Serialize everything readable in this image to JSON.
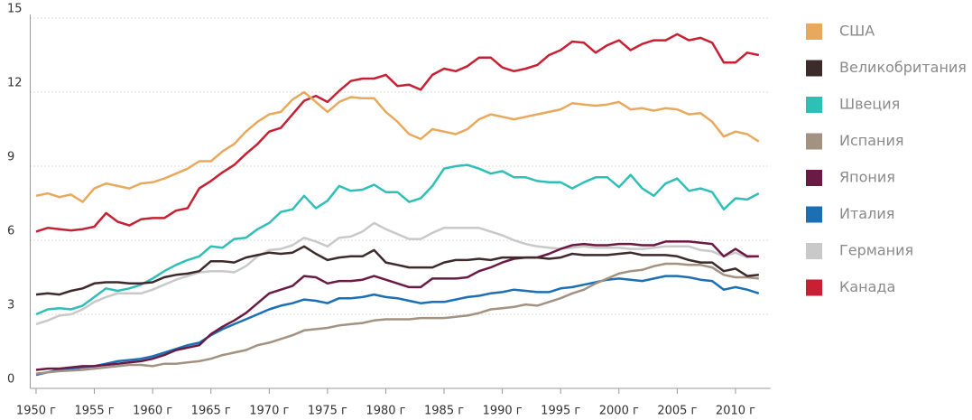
{
  "chart_data": {
    "type": "line",
    "x": [
      1950,
      1951,
      1952,
      1953,
      1954,
      1955,
      1956,
      1957,
      1958,
      1959,
      1960,
      1961,
      1962,
      1963,
      1964,
      1965,
      1966,
      1967,
      1968,
      1969,
      1970,
      1971,
      1972,
      1973,
      1974,
      1975,
      1976,
      1977,
      1978,
      1979,
      1980,
      1981,
      1982,
      1983,
      1984,
      1985,
      1986,
      1987,
      1988,
      1989,
      1990,
      1991,
      1992,
      1993,
      1994,
      1995,
      1996,
      1997,
      1998,
      1999,
      2000,
      2001,
      2002,
      2003,
      2004,
      2005,
      2006,
      2007,
      2008,
      2009,
      2010,
      2011,
      2012
    ],
    "series": [
      {
        "name": "США",
        "color": "#e8a95c",
        "values": [
          7.8,
          7.9,
          7.75,
          7.85,
          7.55,
          8.1,
          8.3,
          8.2,
          8.1,
          8.3,
          8.35,
          8.5,
          8.7,
          8.9,
          9.2,
          9.2,
          9.6,
          9.9,
          10.4,
          10.8,
          11.1,
          11.2,
          11.7,
          12.0,
          11.6,
          11.2,
          11.6,
          11.8,
          11.75,
          11.75,
          11.2,
          10.8,
          10.3,
          10.1,
          10.5,
          10.4,
          10.3,
          10.5,
          10.9,
          11.1,
          11.0,
          10.9,
          11.0,
          11.1,
          11.2,
          11.3,
          11.55,
          11.5,
          11.45,
          11.5,
          11.6,
          11.3,
          11.35,
          11.25,
          11.35,
          11.3,
          11.1,
          11.15,
          10.8,
          10.2,
          10.4,
          10.3,
          10.0
        ]
      },
      {
        "name": "Великобритания",
        "color": "#3d2b2b",
        "values": [
          3.8,
          3.85,
          3.8,
          3.95,
          4.05,
          4.25,
          4.3,
          4.3,
          4.25,
          4.25,
          4.3,
          4.5,
          4.6,
          4.65,
          4.75,
          5.15,
          5.15,
          5.1,
          5.3,
          5.4,
          5.5,
          5.45,
          5.5,
          5.75,
          5.45,
          5.2,
          5.3,
          5.35,
          5.35,
          5.6,
          5.1,
          5.0,
          4.9,
          4.9,
          4.9,
          5.1,
          5.2,
          5.2,
          5.25,
          5.2,
          5.3,
          5.3,
          5.3,
          5.3,
          5.25,
          5.3,
          5.45,
          5.4,
          5.4,
          5.4,
          5.45,
          5.5,
          5.4,
          5.4,
          5.4,
          5.35,
          5.2,
          5.1,
          5.1,
          4.75,
          4.85,
          4.55,
          4.6
        ]
      },
      {
        "name": "Швеция",
        "color": "#2ebfb7",
        "values": [
          3.0,
          3.2,
          3.25,
          3.2,
          3.35,
          3.7,
          4.05,
          3.95,
          4.05,
          4.2,
          4.45,
          4.75,
          5.0,
          5.2,
          5.35,
          5.75,
          5.7,
          6.05,
          6.1,
          6.45,
          6.7,
          7.15,
          7.25,
          7.8,
          7.3,
          7.6,
          8.2,
          8.0,
          8.05,
          8.25,
          7.95,
          7.95,
          7.55,
          7.7,
          8.2,
          8.9,
          9.0,
          9.05,
          8.9,
          8.7,
          8.8,
          8.55,
          8.55,
          8.4,
          8.35,
          8.35,
          8.1,
          8.35,
          8.55,
          8.55,
          8.15,
          8.65,
          8.1,
          7.8,
          8.3,
          8.5,
          8.0,
          8.1,
          7.95,
          7.25,
          7.7,
          7.65,
          7.9
        ]
      },
      {
        "name": "Испания",
        "color": "#a39282",
        "values": [
          0.6,
          0.65,
          0.7,
          0.72,
          0.75,
          0.8,
          0.85,
          0.9,
          0.95,
          0.95,
          0.9,
          1.0,
          1.0,
          1.05,
          1.1,
          1.2,
          1.35,
          1.45,
          1.55,
          1.75,
          1.85,
          2.0,
          2.15,
          2.35,
          2.4,
          2.45,
          2.55,
          2.6,
          2.65,
          2.75,
          2.8,
          2.8,
          2.8,
          2.85,
          2.85,
          2.85,
          2.9,
          2.95,
          3.05,
          3.2,
          3.25,
          3.3,
          3.4,
          3.35,
          3.5,
          3.65,
          3.85,
          4.0,
          4.25,
          4.45,
          4.65,
          4.75,
          4.8,
          4.95,
          5.05,
          5.05,
          5.0,
          5.0,
          4.9,
          4.6,
          4.5,
          4.5,
          4.45
        ]
      },
      {
        "name": "Япония",
        "color": "#6b1a45",
        "values": [
          0.75,
          0.8,
          0.8,
          0.85,
          0.9,
          0.9,
          0.95,
          1.0,
          1.05,
          1.1,
          1.2,
          1.35,
          1.55,
          1.65,
          1.75,
          2.2,
          2.5,
          2.75,
          3.05,
          3.45,
          3.85,
          4.0,
          4.15,
          4.55,
          4.5,
          4.25,
          4.35,
          4.35,
          4.4,
          4.55,
          4.4,
          4.25,
          4.1,
          4.1,
          4.45,
          4.45,
          4.45,
          4.5,
          4.75,
          4.9,
          5.1,
          5.25,
          5.3,
          5.3,
          5.45,
          5.65,
          5.8,
          5.85,
          5.8,
          5.8,
          5.85,
          5.85,
          5.8,
          5.8,
          5.95,
          5.95,
          5.95,
          5.9,
          5.85,
          5.35,
          5.65,
          5.35,
          5.35
        ]
      },
      {
        "name": "Италия",
        "color": "#1a6fb5",
        "values": [
          0.55,
          0.65,
          0.75,
          0.8,
          0.85,
          0.9,
          1.0,
          1.1,
          1.15,
          1.2,
          1.3,
          1.45,
          1.6,
          1.75,
          1.85,
          2.15,
          2.4,
          2.6,
          2.8,
          3.0,
          3.2,
          3.35,
          3.45,
          3.6,
          3.55,
          3.45,
          3.65,
          3.65,
          3.7,
          3.8,
          3.7,
          3.65,
          3.55,
          3.45,
          3.5,
          3.5,
          3.6,
          3.7,
          3.75,
          3.85,
          3.9,
          4.0,
          3.95,
          3.9,
          3.9,
          4.05,
          4.1,
          4.2,
          4.3,
          4.4,
          4.45,
          4.4,
          4.35,
          4.45,
          4.55,
          4.55,
          4.5,
          4.4,
          4.35,
          4.0,
          4.1,
          4.0,
          3.85
        ]
      },
      {
        "name": "Германия",
        "color": "#c9c9c9",
        "values": [
          2.6,
          2.75,
          2.95,
          3.0,
          3.2,
          3.5,
          3.7,
          3.85,
          3.85,
          3.85,
          4.0,
          4.2,
          4.4,
          4.55,
          4.7,
          4.75,
          4.75,
          4.7,
          4.95,
          5.35,
          5.6,
          5.65,
          5.8,
          6.1,
          5.95,
          5.75,
          6.1,
          6.15,
          6.35,
          6.7,
          6.45,
          6.25,
          6.05,
          6.05,
          6.3,
          6.5,
          6.5,
          6.5,
          6.5,
          6.35,
          6.2,
          6.0,
          5.85,
          5.75,
          5.7,
          5.65,
          5.7,
          5.75,
          5.7,
          5.7,
          5.7,
          5.65,
          5.65,
          5.7,
          5.75,
          5.75,
          5.75,
          5.6,
          5.55,
          5.35,
          5.5,
          5.3,
          5.35
        ]
      },
      {
        "name": "Канада",
        "color": "#c62032",
        "values": [
          6.35,
          6.5,
          6.45,
          6.4,
          6.45,
          6.55,
          7.1,
          6.75,
          6.6,
          6.85,
          6.9,
          6.9,
          7.2,
          7.3,
          8.1,
          8.4,
          8.75,
          9.05,
          9.5,
          9.9,
          10.4,
          10.55,
          11.1,
          11.65,
          11.85,
          11.6,
          12.05,
          12.45,
          12.55,
          12.55,
          12.7,
          12.25,
          12.3,
          12.1,
          12.7,
          12.95,
          12.85,
          13.05,
          13.4,
          13.4,
          13.0,
          12.85,
          12.95,
          13.1,
          13.5,
          13.7,
          14.05,
          14.0,
          13.6,
          13.9,
          14.1,
          13.7,
          13.95,
          14.1,
          14.1,
          14.35,
          14.1,
          14.2,
          14.0,
          13.2,
          13.2,
          13.6,
          13.5
        ]
      }
    ],
    "xlim": [
      1949.5,
      2013
    ],
    "xticks": [
      {
        "value": 1950,
        "label": "1950 г"
      },
      {
        "value": 1955,
        "label": "1955 г"
      },
      {
        "value": 1960,
        "label": "1960 г"
      },
      {
        "value": 1965,
        "label": "1965 г"
      },
      {
        "value": 1970,
        "label": "1970 г"
      },
      {
        "value": 1975,
        "label": "1975 г"
      },
      {
        "value": 1980,
        "label": "1980 г"
      },
      {
        "value": 1985,
        "label": "1985 г"
      },
      {
        "value": 1990,
        "label": "1990 г"
      },
      {
        "value": 1995,
        "label": "1995 г"
      },
      {
        "value": 2000,
        "label": "2000 г"
      },
      {
        "value": 2005,
        "label": "2005 г"
      },
      {
        "value": 2010,
        "label": "2010 г"
      }
    ],
    "ylim": [
      0,
      15
    ],
    "yticks": [
      0,
      3,
      6,
      9,
      12,
      15
    ],
    "grid": true,
    "legend": "right"
  }
}
